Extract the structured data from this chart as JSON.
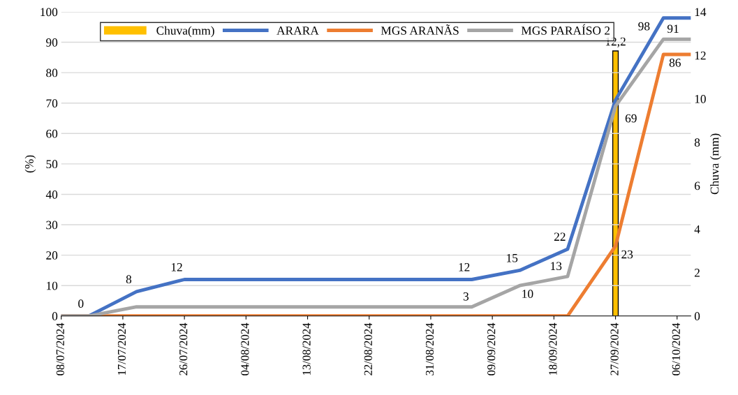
{
  "chart_data": {
    "type": "line",
    "ylabel": "(%)",
    "y2label": "Chuva (mm)",
    "xlim": [
      "2024-07-08",
      "2024-10-08"
    ],
    "xticks": [
      {
        "value": "2024-07-08",
        "label": "08/07/2024"
      },
      {
        "value": "2024-07-17",
        "label": "17/07/2024"
      },
      {
        "value": "2024-07-26",
        "label": "26/07/2024"
      },
      {
        "value": "2024-08-04",
        "label": "04/08/2024"
      },
      {
        "value": "2024-08-13",
        "label": "13/08/2024"
      },
      {
        "value": "2024-08-22",
        "label": "22/08/2024"
      },
      {
        "value": "2024-08-31",
        "label": "31/08/2024"
      },
      {
        "value": "2024-09-09",
        "label": "09/09/2024"
      },
      {
        "value": "2024-09-18",
        "label": "18/09/2024"
      },
      {
        "value": "2024-09-27",
        "label": "27/09/2024"
      },
      {
        "value": "2024-10-06",
        "label": "06/10/2024"
      }
    ],
    "ylim": [
      0,
      100
    ],
    "yticks": [
      0,
      10,
      20,
      30,
      40,
      50,
      60,
      70,
      80,
      90,
      100
    ],
    "y2lim": [
      0,
      14
    ],
    "y2ticks": [
      0,
      2,
      4,
      6,
      8,
      10,
      12,
      14
    ],
    "x": [
      "2024-07-08",
      "2024-07-12",
      "2024-07-19",
      "2024-07-26",
      "2024-08-22",
      "2024-09-06",
      "2024-09-13",
      "2024-09-20",
      "2024-09-27",
      "2024-10-04",
      "2024-10-08"
    ],
    "series": [
      {
        "name": "Chuva(mm)",
        "type": "bar",
        "axis": "y2",
        "color": "#ffc000",
        "x": [
          "2024-09-27"
        ],
        "values": [
          12.2
        ],
        "value_labels": [
          "12,2"
        ]
      },
      {
        "name": "ARARA",
        "color": "#4472c4",
        "values": [
          0,
          0,
          8,
          12,
          12,
          12,
          15,
          22,
          71,
          98,
          98
        ],
        "value_labels": [
          null,
          "0",
          "8",
          "12",
          null,
          "12",
          "15",
          "22",
          null,
          "98",
          null
        ]
      },
      {
        "name": "MGS ARANÃS",
        "color": "#ed7d31",
        "values": [
          0,
          0,
          0,
          0,
          0,
          0,
          0,
          0,
          23,
          86,
          86
        ],
        "value_labels": [
          null,
          null,
          null,
          null,
          null,
          null,
          null,
          null,
          "23",
          "86",
          null
        ]
      },
      {
        "name": "MGS PARAÍSO 2",
        "color": "#a5a5a5",
        "values": [
          0,
          0,
          3,
          3,
          3,
          3,
          10,
          13,
          69,
          91,
          91
        ],
        "value_labels": [
          null,
          null,
          null,
          null,
          null,
          "3",
          "10",
          "13",
          "69",
          "91",
          null
        ]
      }
    ],
    "grid": "y",
    "legend": "top",
    "marker": "none",
    "line_style": "solid"
  }
}
